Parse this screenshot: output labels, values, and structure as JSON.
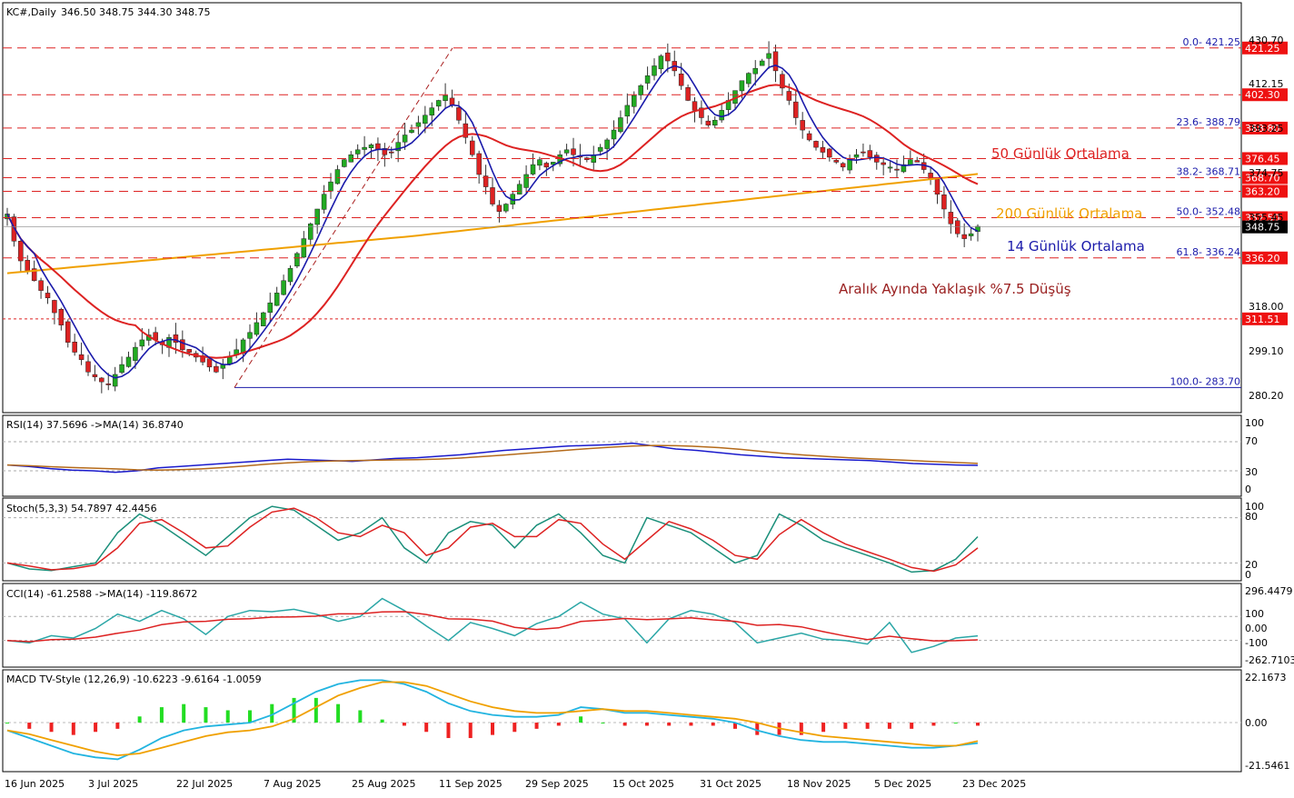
{
  "header": {
    "symbol": "KC#,Daily",
    "ohlc": "346.50 348.75 344.30 348.75"
  },
  "colors": {
    "up": "#22aa22",
    "down": "#dd2222",
    "level_line": "#dd2222",
    "ma14": "#1a1aaa",
    "ma50": "#dd2222",
    "ma200": "#f0a000",
    "fib_text": "#1a1aaa",
    "axis_text": "#000000",
    "price_badge": "#ee1111",
    "current_badge": "#000000"
  },
  "chart_data": [
    {
      "type": "candlestick",
      "panel": "price",
      "ylim": [
        275.0,
        437.0
      ],
      "y_ticks": [
        "430.70",
        "412.15",
        "393.25",
        "374.75",
        "355.45",
        "337.40",
        "318.00",
        "299.10",
        "280.20"
      ],
      "x_ticks": [
        "16 Jun 2025",
        "3 Jul 2025",
        "22 Jul 2025",
        "7 Aug 2025",
        "25 Aug 2025",
        "11 Sep 2025",
        "29 Sep 2025",
        "15 Oct 2025",
        "31 Oct 2025",
        "18 Nov 2025",
        "5 Dec 2025",
        "23 Dec 2025"
      ],
      "closes": [
        354,
        343,
        335,
        331,
        327,
        323,
        320,
        314,
        309,
        302,
        298,
        295,
        290,
        288,
        286,
        285,
        289,
        293,
        296,
        300,
        303,
        305,
        303,
        301,
        304,
        302,
        299,
        298,
        296,
        294,
        292,
        290,
        293,
        296,
        299,
        303,
        306,
        310,
        314,
        318,
        322,
        327,
        332,
        338,
        344,
        350,
        356,
        362,
        367,
        372,
        376,
        378,
        380,
        381,
        382,
        380,
        378,
        379,
        383,
        386,
        388,
        391,
        394,
        397,
        400,
        402,
        398,
        392,
        385,
        378,
        370,
        365,
        358,
        355,
        358,
        362,
        366,
        370,
        374,
        376,
        373,
        375,
        378,
        380,
        378,
        377,
        376,
        378,
        381,
        384,
        388,
        393,
        398,
        402,
        406,
        410,
        414,
        418,
        416,
        412,
        406,
        400,
        396,
        393,
        390,
        392,
        396,
        400,
        404,
        408,
        411,
        413,
        416,
        419,
        412,
        405,
        400,
        393,
        388,
        384,
        381,
        379,
        377,
        375,
        373,
        376,
        378,
        379,
        377,
        375,
        374,
        373,
        372,
        374,
        376,
        375,
        372,
        368,
        362,
        356,
        350,
        346,
        344,
        346,
        349
      ],
      "levels": [
        {
          "label": "421.25",
          "value": 421.25,
          "fib": "0.0- 421.25"
        },
        {
          "label": "402.30",
          "value": 402.3,
          "fib": ""
        },
        {
          "label": "388.80",
          "value": 388.8,
          "fib": "23.6- 388.79"
        },
        {
          "label": "376.45",
          "value": 376.45,
          "fib": ""
        },
        {
          "label": "368.70",
          "value": 368.7,
          "fib": "38.2- 368.71"
        },
        {
          "label": "363.20",
          "value": 363.2,
          "fib": ""
        },
        {
          "label": "352.50",
          "value": 352.5,
          "fib": "50.0- 352.48"
        },
        {
          "label": "336.20",
          "value": 336.2,
          "fib": "61.8- 336.24"
        },
        {
          "label": "311.51",
          "value": 311.51,
          "fib": ""
        }
      ],
      "fib_base": {
        "label": "100.0- 283.70",
        "value": 283.7
      },
      "current": {
        "label": "348.75",
        "value": 348.75
      },
      "annotations": [
        {
          "text": "50 Günlük Ortalama",
          "color": "ma50"
        },
        {
          "text": "200 Günlük Ortalama",
          "color": "ma200"
        },
        {
          "text": "14 Günlük Ortalama",
          "color": "ma14"
        },
        {
          "text": "Aralık Ayında Yaklaşık %7.5 Düşüş",
          "color": "note"
        }
      ]
    },
    {
      "type": "line",
      "panel": "rsi",
      "label": "RSI(14) 37.5696   ->MA(14) 36.8740",
      "ylim": [
        0,
        100
      ],
      "y_ticks": [
        "100",
        "70",
        "30",
        "0"
      ],
      "values": [
        38,
        36,
        33,
        31,
        30,
        28,
        30,
        34,
        36,
        38,
        40,
        42,
        44,
        46,
        45,
        44,
        43,
        45,
        47,
        48,
        50,
        52,
        55,
        58,
        60,
        62,
        64,
        65,
        66,
        68,
        64,
        60,
        58,
        55,
        52,
        50,
        48,
        47,
        46,
        45,
        44,
        42,
        40,
        39,
        38,
        37.5
      ]
    },
    {
      "type": "line",
      "panel": "stoch",
      "label": "Stoch(5,3,3) 54.7897 42.4456",
      "ylim": [
        0,
        100
      ],
      "y_ticks": [
        "100",
        "80",
        "20",
        "0"
      ],
      "values": [
        20,
        12,
        10,
        15,
        20,
        60,
        85,
        70,
        50,
        30,
        55,
        80,
        95,
        90,
        70,
        50,
        60,
        80,
        40,
        20,
        60,
        75,
        70,
        40,
        70,
        85,
        60,
        30,
        20,
        80,
        70,
        60,
        40,
        20,
        30,
        85,
        70,
        50,
        40,
        30,
        20,
        8,
        10,
        25,
        54.8
      ]
    },
    {
      "type": "line",
      "panel": "cci",
      "label": "CCI(14) -61.2588   ->MA(14) -119.8672",
      "ylim": [
        -300,
        330
      ],
      "y_ticks": [
        "296.4479",
        "100",
        "0.00",
        "-100",
        "-262.7103"
      ],
      "values": [
        -100,
        -120,
        -60,
        -80,
        0,
        120,
        60,
        150,
        80,
        -50,
        100,
        150,
        140,
        160,
        120,
        60,
        100,
        250,
        150,
        20,
        -100,
        50,
        0,
        -60,
        40,
        100,
        220,
        120,
        80,
        -120,
        80,
        150,
        120,
        50,
        -120,
        -80,
        -40,
        -90,
        -100,
        -130,
        50,
        -200,
        -150,
        -80,
        -61.3
      ]
    },
    {
      "type": "bar",
      "panel": "macd",
      "label": "MACD TV-Style (12,26,9) -10.6223 -9.6164 -1.0059",
      "ylim": [
        -24,
        25
      ],
      "y_ticks": [
        "22.1673",
        "0.00",
        "-21.5461"
      ],
      "macd": [
        -4,
        -8,
        -12,
        -16,
        -18,
        -19,
        -14,
        -8,
        -4,
        -2,
        -1,
        0,
        4,
        10,
        16,
        20,
        22,
        22,
        20,
        16,
        10,
        6,
        4,
        3,
        3,
        4,
        8,
        7,
        5,
        5,
        4,
        3,
        2,
        0,
        -4,
        -7,
        -9,
        -10,
        -10,
        -11,
        -12,
        -13,
        -13,
        -12,
        -10.6
      ],
      "signal": [
        -4,
        -6,
        -9,
        -12,
        -15,
        -17,
        -16,
        -13,
        -10,
        -7,
        -5,
        -4,
        -2,
        2,
        8,
        14,
        18,
        21,
        21,
        19,
        15,
        11,
        8,
        6,
        5,
        5,
        6,
        7,
        6,
        6,
        5,
        4,
        3,
        2,
        0,
        -3,
        -5,
        -7,
        -8,
        -9,
        -10,
        -11,
        -12,
        -12,
        -9.6
      ]
    }
  ]
}
